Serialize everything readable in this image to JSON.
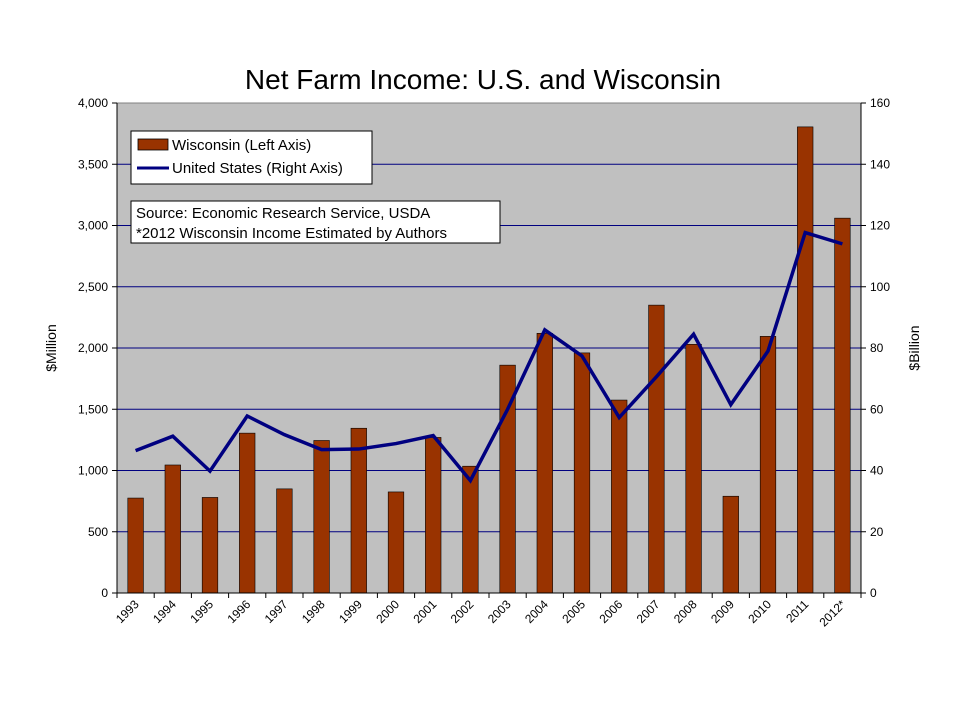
{
  "chart_data": {
    "type": "bar",
    "title": "Net Farm Income: U.S. and Wisconsin",
    "categories": [
      "1993",
      "1994",
      "1995",
      "1996",
      "1997",
      "1998",
      "1999",
      "2000",
      "2001",
      "2002",
      "2003",
      "2004",
      "2005",
      "2006",
      "2007",
      "2008",
      "2009",
      "2010",
      "2011",
      "2012*"
    ],
    "ylabel": "$Million",
    "y2label": "$Billion",
    "ylim": [
      0,
      4000
    ],
    "y2lim": [
      0,
      160
    ],
    "yticks": [
      "0",
      "500",
      "1,000",
      "1,500",
      "2,000",
      "2,500",
      "3,000",
      "3,500",
      "4,000"
    ],
    "y2ticks": [
      "0",
      "20",
      "40",
      "60",
      "80",
      "100",
      "120",
      "140",
      "160"
    ],
    "grid": true,
    "series": [
      {
        "name": "Wisconsin (Left Axis)",
        "type": "bar",
        "axis": "left",
        "color": "#993300",
        "values": [
          775,
          1045,
          780,
          1305,
          850,
          1245,
          1345,
          825,
          1270,
          1035,
          1860,
          2120,
          1960,
          1575,
          2350,
          2030,
          790,
          2095,
          3805,
          3060
        ]
      },
      {
        "name": "United States (Right Axis)",
        "type": "line",
        "axis": "right",
        "color": "#000080",
        "values": [
          46.5,
          51.2,
          39.8,
          57.8,
          51.7,
          46.8,
          47.0,
          48.8,
          51.4,
          36.7,
          60.0,
          85.9,
          77.4,
          57.3,
          70.6,
          84.5,
          61.5,
          79.0,
          117.7,
          114.0
        ]
      }
    ],
    "legend": {
      "placement": "top-left",
      "items": [
        "Wisconsin (Left Axis)",
        "United States (Right Axis)"
      ]
    },
    "annotation": {
      "lines": [
        "Source: Economic Research Service, USDA",
        "*2012 Wisconsin Income Estimated by Authors"
      ]
    },
    "colors": {
      "plot_background": "#c0c0c0",
      "grid": "#000080"
    }
  }
}
